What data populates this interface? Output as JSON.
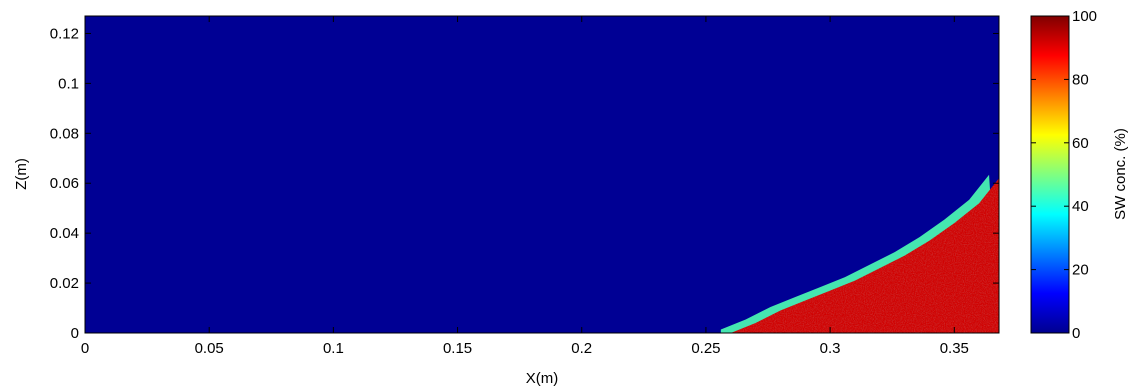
{
  "chart_data": {
    "type": "heatmap",
    "title": "",
    "xlabel": "X(m)",
    "ylabel": "Z(m)",
    "xlim": [
      0,
      0.368
    ],
    "ylim": [
      0,
      0.127
    ],
    "x_ticks": [
      0,
      0.05,
      0.1,
      0.15,
      0.2,
      0.25,
      0.3,
      0.35
    ],
    "x_tick_labels": [
      "0",
      "0.05",
      "0.1",
      "0.15",
      "0.2",
      "0.25",
      "0.3",
      "0.35"
    ],
    "y_ticks": [
      0,
      0.02,
      0.04,
      0.06,
      0.08,
      0.1,
      0.12
    ],
    "y_tick_labels": [
      "0",
      "0.02",
      "0.04",
      "0.06",
      "0.08",
      "0.1",
      "0.12"
    ],
    "grid": false,
    "colormap": "jet",
    "background_value": 2,
    "wedge_value": 92,
    "interface": {
      "description": "saltwater wedge toe and interface",
      "x": [
        0.26,
        0.27,
        0.28,
        0.29,
        0.3,
        0.31,
        0.32,
        0.33,
        0.34,
        0.35,
        0.36,
        0.368
      ],
      "z": [
        0.0,
        0.004,
        0.009,
        0.013,
        0.017,
        0.021,
        0.026,
        0.031,
        0.037,
        0.044,
        0.052,
        0.062
      ]
    },
    "transition_width_m": 0.004,
    "colorbar": {
      "label": "SW conc. (%)",
      "range": [
        0,
        100
      ],
      "ticks": [
        0,
        20,
        40,
        60,
        80,
        100
      ],
      "tick_labels": [
        "0",
        "20",
        "40",
        "60",
        "80",
        "100"
      ]
    }
  }
}
